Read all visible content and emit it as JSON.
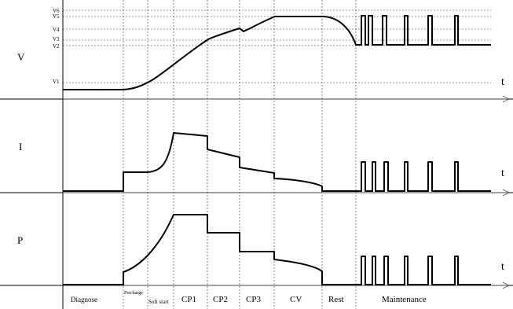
{
  "panels": {
    "voltage_label": "V",
    "current_label": "I",
    "power_label": "P",
    "time_label": "t"
  },
  "voltage_levels": [
    "V6",
    "V5",
    "V4",
    "V3",
    "V2",
    "V1"
  ],
  "phases": [
    {
      "key": "diagnose",
      "label": "Diagnose"
    },
    {
      "key": "precharge",
      "label": "Precharge"
    },
    {
      "key": "softstart",
      "label": "Soft start"
    },
    {
      "key": "cp1",
      "label": "CP1"
    },
    {
      "key": "cp2",
      "label": "CP2"
    },
    {
      "key": "cp3",
      "label": "CP3"
    },
    {
      "key": "cv",
      "label": "CV"
    },
    {
      "key": "rest",
      "label": "Rest"
    },
    {
      "key": "maintenance",
      "label": "Maintenance"
    }
  ]
}
